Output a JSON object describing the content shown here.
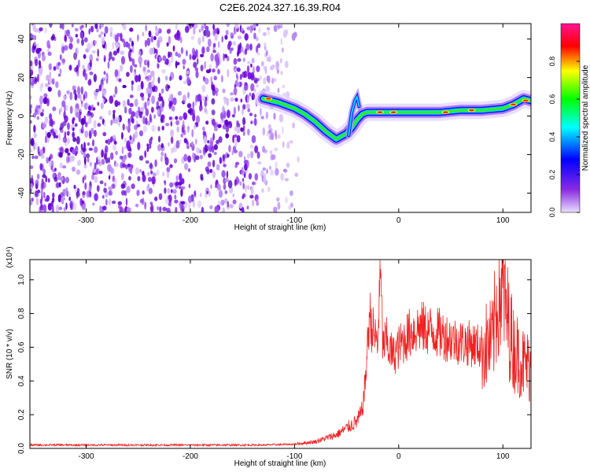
{
  "title": "C2E6.2024.327.16.39.R04",
  "chart_data": [
    {
      "type": "heatmap",
      "xlabel": "Height of straight line (km)",
      "ylabel": "Frequency (Hz)",
      "xlim": [
        -354,
        127
      ],
      "ylim": [
        -50,
        48
      ],
      "xticks": [
        -300,
        -200,
        -100,
        0,
        100
      ],
      "yticks": [
        -40,
        -20,
        0,
        20,
        40
      ],
      "colorbar": {
        "label": "Normalized spectral amplitude",
        "range": [
          0,
          1
        ],
        "ticks": [
          "0.0",
          "0.2",
          "0.4",
          "0.6",
          "0.8"
        ],
        "colors": [
          "#e8e0ff",
          "#8a2be2",
          "#0000ff",
          "#00ffff",
          "#00ff00",
          "#ffff00",
          "#ff0000",
          "#ff1493"
        ]
      },
      "noise_region": {
        "x_range": [
          -354,
          -95
        ],
        "freq_range": [
          -50,
          48
        ]
      },
      "ridge": {
        "x": [
          -130,
          -115,
          -100,
          -90,
          -80,
          -70,
          -60,
          -50,
          -45,
          -40,
          -35,
          -30,
          -20,
          -10,
          0,
          20,
          40,
          60,
          80,
          100,
          110,
          120,
          127
        ],
        "freq": [
          9,
          7,
          4,
          1,
          -3,
          -8,
          -12,
          -9,
          -6,
          -2,
          1,
          2,
          2,
          2,
          2,
          2,
          2,
          3,
          3,
          4,
          6,
          9,
          8
        ]
      },
      "notch": {
        "x": [
          -48,
          -45,
          -42,
          -40,
          -38
        ],
        "freq": [
          -10,
          2,
          8,
          10,
          5
        ]
      }
    },
    {
      "type": "line",
      "xlabel": "Height of straight line (km)",
      "ylabel": "SNR (10 * v/v)",
      "y_multiplier": "(x10⁴)",
      "xlim": [
        -354,
        127
      ],
      "ylim": [
        0,
        1.12
      ],
      "xticks": [
        -300,
        -200,
        -100,
        0,
        100
      ],
      "yticks": [
        "0.0",
        "0.2",
        "0.4",
        "0.6",
        "0.8",
        "1.0"
      ],
      "color": "#ee2222",
      "series": [
        {
          "x": [
            -354,
            -300,
            -200,
            -130,
            -100,
            -80,
            -60,
            -50,
            -40,
            -35,
            -32,
            -30,
            -28,
            -25,
            -22,
            -20,
            -18,
            -15,
            -12,
            -10,
            -5,
            0,
            10,
            20,
            30,
            40,
            50,
            60,
            70,
            80,
            90,
            95,
            100,
            105,
            110,
            115,
            120,
            127
          ],
          "y": [
            0.02,
            0.02,
            0.02,
            0.02,
            0.025,
            0.04,
            0.08,
            0.12,
            0.16,
            0.22,
            0.4,
            0.6,
            0.8,
            0.7,
            0.65,
            0.6,
            1.1,
            0.6,
            0.65,
            0.6,
            0.55,
            0.6,
            0.68,
            0.72,
            0.7,
            0.68,
            0.65,
            0.63,
            0.62,
            0.6,
            0.62,
            0.9,
            0.95,
            0.75,
            0.6,
            0.55,
            0.5,
            0.48
          ]
        }
      ]
    }
  ]
}
